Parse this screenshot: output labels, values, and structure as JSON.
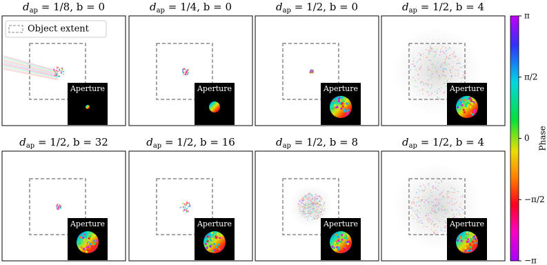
{
  "panels": [
    {
      "title": {
        "symbol": "d",
        "subscript": "ap",
        "rest": " = 1/8, b = 0"
      },
      "inset_label": "Aperture"
    },
    {
      "title": {
        "symbol": "d",
        "subscript": "ap",
        "rest": " = 1/4, b = 0"
      },
      "inset_label": "Aperture"
    },
    {
      "title": {
        "symbol": "d",
        "subscript": "ap",
        "rest": " = 1/2, b = 0"
      },
      "inset_label": "Aperture"
    },
    {
      "title": {
        "symbol": "d",
        "subscript": "ap",
        "rest": " = 1/2, b = 4"
      },
      "inset_label": "Aperture"
    },
    {
      "title": {
        "symbol": "d",
        "subscript": "ap",
        "rest": " = 1/2, b = 32"
      },
      "inset_label": "Aperture"
    },
    {
      "title": {
        "symbol": "d",
        "subscript": "ap",
        "rest": " = 1/2, b = 16"
      },
      "inset_label": "Aperture"
    },
    {
      "title": {
        "symbol": "d",
        "subscript": "ap",
        "rest": " = 1/2, b = 8"
      },
      "inset_label": "Aperture"
    },
    {
      "title": {
        "symbol": "d",
        "subscript": "ap",
        "rest": " = 1/2, b = 4"
      },
      "inset_label": "Aperture"
    }
  ],
  "legend": {
    "label": "Object extent"
  },
  "colorbar": {
    "label": "Phase",
    "ticks": [
      "π",
      "π/2",
      "0",
      "−π/2",
      "−π"
    ]
  }
}
